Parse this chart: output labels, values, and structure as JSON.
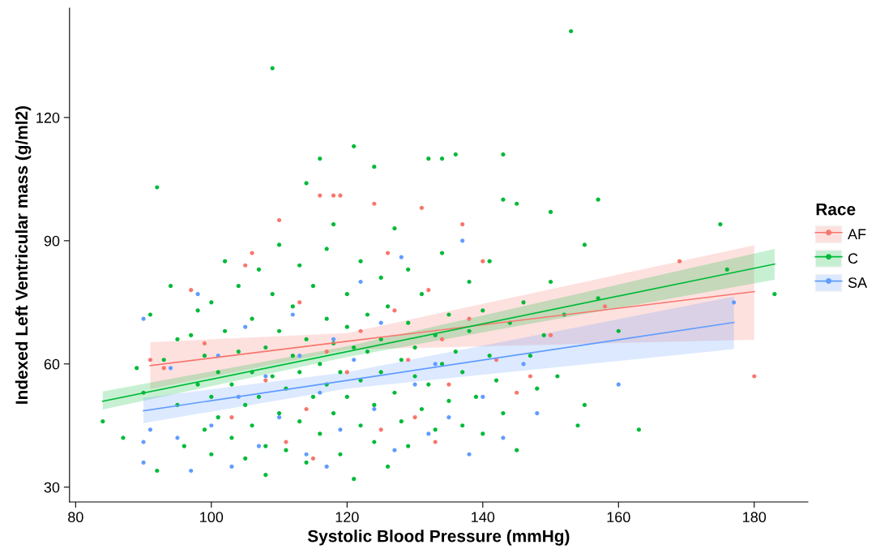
{
  "chart_data": {
    "type": "scatter",
    "xlabel": "Systolic Blood Pressure (mmHg)",
    "ylabel": "Indexed Left Ventricular mass (g/ml2)",
    "legend_title": "Race",
    "legend": "right",
    "grid": false,
    "marker": "circle",
    "xlim": [
      79.1,
      187.9
    ],
    "ylim": [
      26.4,
      146.6
    ],
    "xticks": [
      80,
      100,
      120,
      140,
      160,
      180
    ],
    "yticks": [
      30,
      60,
      90,
      120
    ],
    "series": [
      {
        "name": "AF",
        "color": "#f8766d",
        "x": [
          91,
          93,
          97,
          99,
          103,
          105,
          106,
          108,
          110,
          111,
          113,
          114,
          115,
          116,
          117,
          118,
          119,
          120,
          122,
          124,
          125,
          126,
          127,
          129,
          130,
          131,
          132,
          133,
          134,
          135,
          137,
          138,
          140,
          142,
          145,
          147,
          150,
          158,
          169,
          180
        ],
        "values": [
          61,
          59,
          78,
          65,
          47,
          84,
          87,
          56,
          95,
          41,
          75,
          49,
          37,
          101,
          63,
          101,
          101,
          58,
          68,
          99,
          44,
          87,
          73,
          61,
          47,
          98,
          78,
          41,
          66,
          55,
          94,
          71,
          85,
          61,
          53,
          57,
          67,
          74,
          85,
          57
        ]
      },
      {
        "name": "C",
        "color": "#00ba38",
        "x": [
          84,
          87,
          89,
          90,
          91,
          92,
          92,
          93,
          94,
          95,
          95,
          96,
          97,
          98,
          98,
          99,
          99,
          100,
          100,
          100,
          101,
          101,
          102,
          102,
          103,
          103,
          104,
          104,
          105,
          105,
          106,
          106,
          106,
          107,
          107,
          108,
          108,
          108,
          109,
          109,
          109,
          110,
          110,
          110,
          111,
          111,
          112,
          112,
          113,
          113,
          113,
          114,
          114,
          114,
          115,
          115,
          116,
          116,
          116,
          117,
          117,
          117,
          118,
          118,
          118,
          119,
          119,
          120,
          120,
          120,
          121,
          121,
          121,
          122,
          122,
          122,
          123,
          123,
          124,
          124,
          124,
          125,
          125,
          125,
          126,
          126,
          127,
          127,
          128,
          128,
          129,
          129,
          129,
          130,
          130,
          131,
          131,
          132,
          132,
          133,
          133,
          134,
          134,
          134,
          135,
          135,
          136,
          136,
          137,
          137,
          138,
          138,
          139,
          140,
          140,
          141,
          141,
          142,
          143,
          143,
          143,
          144,
          145,
          145,
          146,
          147,
          148,
          149,
          150,
          150,
          151,
          152,
          153,
          154,
          155,
          155,
          157,
          157,
          160,
          163,
          175,
          176,
          183
        ],
        "values": [
          46,
          42,
          59,
          53,
          72,
          103,
          34,
          61,
          79,
          66,
          50,
          40,
          67,
          55,
          73,
          44,
          62,
          52,
          75,
          38,
          58,
          47,
          68,
          85,
          42,
          55,
          63,
          79,
          50,
          37,
          71,
          58,
          45,
          83,
          52,
          64,
          40,
          33,
          132,
          57,
          77,
          48,
          68,
          89,
          54,
          39,
          62,
          74,
          46,
          84,
          58,
          104,
          36,
          66,
          52,
          79,
          110,
          60,
          43,
          71,
          88,
          55,
          48,
          94,
          65,
          38,
          58,
          77,
          52,
          69,
          113,
          32,
          64,
          85,
          45,
          56,
          72,
          63,
          108,
          50,
          41,
          81,
          66,
          58,
          35,
          74,
          53,
          93,
          61,
          46,
          70,
          83,
          40,
          57,
          64,
          49,
          77,
          110,
          55,
          67,
          44,
          110,
          60,
          87,
          51,
          72,
          111,
          63,
          58,
          45,
          80,
          68,
          52,
          73,
          43,
          85,
          62,
          56,
          111,
          100,
          48,
          70,
          99,
          39,
          75,
          62,
          54,
          67,
          97,
          80,
          57,
          72,
          141,
          45,
          89,
          50,
          100,
          76,
          68,
          44,
          94,
          83,
          77
        ]
      },
      {
        "name": "SA",
        "color": "#619cff",
        "x": [
          90,
          90,
          90,
          91,
          94,
          95,
          97,
          98,
          100,
          101,
          103,
          104,
          105,
          107,
          108,
          110,
          112,
          113,
          114,
          116,
          117,
          118,
          119,
          121,
          122,
          124,
          125,
          127,
          128,
          130,
          132,
          133,
          135,
          137,
          138,
          140,
          143,
          146,
          148,
          160,
          177
        ],
        "values": [
          71,
          41,
          36,
          44,
          59,
          42,
          34,
          77,
          45,
          62,
          35,
          52,
          69,
          40,
          57,
          47,
          72,
          62,
          38,
          53,
          35,
          66,
          44,
          61,
          80,
          49,
          70,
          39,
          86,
          55,
          43,
          60,
          47,
          90,
          38,
          52,
          42,
          60,
          48,
          55,
          75
        ]
      },
      {
        "type": "line",
        "marker": "none",
        "color": "#f8766d",
        "x": [
          91,
          120,
          180
        ],
        "values": [
          59.6,
          65.5,
          77.6
        ],
        "lower": [
          53.9,
          63.5,
          65.9
        ],
        "upper": [
          65.3,
          67.5,
          88.9
        ]
      },
      {
        "type": "line",
        "marker": "none",
        "color": "#00ba38",
        "x": [
          84,
          120,
          183
        ],
        "values": [
          50.9,
          63.0,
          84.3
        ],
        "lower": [
          48.9,
          61.7,
          80.5
        ],
        "upper": [
          53.3,
          64.3,
          88.0
        ]
      },
      {
        "type": "line",
        "marker": "none",
        "color": "#619cff",
        "x": [
          90,
          120,
          177
        ],
        "values": [
          48.6,
          56.0,
          70.1
        ],
        "lower": [
          45.6,
          54.0,
          63.6
        ],
        "upper": [
          51.7,
          58.0,
          76.4
        ]
      }
    ]
  }
}
